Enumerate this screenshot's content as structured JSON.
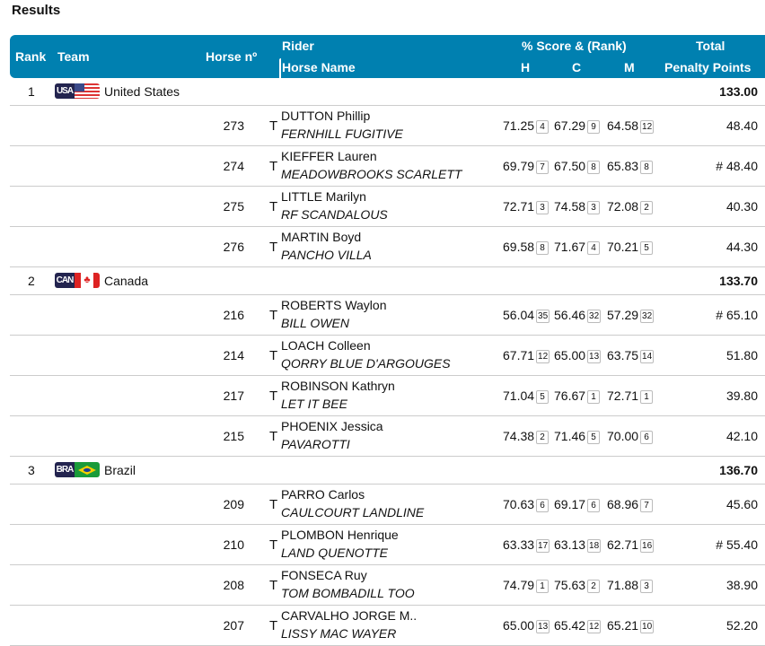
{
  "title": "Results",
  "header": {
    "rank": "Rank",
    "team": "Team",
    "horse_no": "Horse nº",
    "rider": "Rider",
    "horse_name": "Horse Name",
    "score": "% Score & (Rank)",
    "h": "H",
    "c": "C",
    "m": "M",
    "total": "Total",
    "penalty": "Penalty Points"
  },
  "colors": {
    "header_bg": "#0080b0"
  },
  "teams": [
    {
      "rank": "1",
      "code": "USA",
      "name": "United States",
      "total": "133.00",
      "flag": "usa",
      "riders": [
        {
          "no": "273",
          "t": "T",
          "rider": "DUTTON Phillip",
          "horse": "FERNHILL FUGITIVE",
          "h": "71.25",
          "hr": "4",
          "c": "67.29",
          "cr": "9",
          "m": "64.58",
          "mr": "12",
          "pen": "48.40"
        },
        {
          "no": "274",
          "t": "T",
          "rider": "KIEFFER Lauren",
          "horse": "MEADOWBROOKS SCARLETT",
          "h": "69.79",
          "hr": "7",
          "c": "67.50",
          "cr": "8",
          "m": "65.83",
          "mr": "8",
          "pen": "# 48.40"
        },
        {
          "no": "275",
          "t": "T",
          "rider": "LITTLE Marilyn",
          "horse": "RF SCANDALOUS",
          "h": "72.71",
          "hr": "3",
          "c": "74.58",
          "cr": "3",
          "m": "72.08",
          "mr": "2",
          "pen": "40.30"
        },
        {
          "no": "276",
          "t": "T",
          "rider": "MARTIN Boyd",
          "horse": "PANCHO VILLA",
          "h": "69.58",
          "hr": "8",
          "c": "71.67",
          "cr": "4",
          "m": "70.21",
          "mr": "5",
          "pen": "44.30"
        }
      ]
    },
    {
      "rank": "2",
      "code": "CAN",
      "name": "Canada",
      "total": "133.70",
      "flag": "can",
      "riders": [
        {
          "no": "216",
          "t": "T",
          "rider": "ROBERTS Waylon",
          "horse": "BILL OWEN",
          "h": "56.04",
          "hr": "35",
          "c": "56.46",
          "cr": "32",
          "m": "57.29",
          "mr": "32",
          "pen": "# 65.10"
        },
        {
          "no": "214",
          "t": "T",
          "rider": "LOACH Colleen",
          "horse": "QORRY BLUE D'ARGOUGES",
          "h": "67.71",
          "hr": "12",
          "c": "65.00",
          "cr": "13",
          "m": "63.75",
          "mr": "14",
          "pen": "51.80"
        },
        {
          "no": "217",
          "t": "T",
          "rider": "ROBINSON Kathryn",
          "horse": "LET IT BEE",
          "h": "71.04",
          "hr": "5",
          "c": "76.67",
          "cr": "1",
          "m": "72.71",
          "mr": "1",
          "pen": "39.80"
        },
        {
          "no": "215",
          "t": "T",
          "rider": "PHOENIX Jessica",
          "horse": "PAVAROTTI",
          "h": "74.38",
          "hr": "2",
          "c": "71.46",
          "cr": "5",
          "m": "70.00",
          "mr": "6",
          "pen": "42.10"
        }
      ]
    },
    {
      "rank": "3",
      "code": "BRA",
      "name": "Brazil",
      "total": "136.70",
      "flag": "bra",
      "riders": [
        {
          "no": "209",
          "t": "T",
          "rider": "PARRO Carlos",
          "horse": "CAULCOURT LANDLINE",
          "h": "70.63",
          "hr": "6",
          "c": "69.17",
          "cr": "6",
          "m": "68.96",
          "mr": "7",
          "pen": "45.60"
        },
        {
          "no": "210",
          "t": "T",
          "rider": "PLOMBON Henrique",
          "horse": "LAND QUENOTTE",
          "h": "63.33",
          "hr": "17",
          "c": "63.13",
          "cr": "18",
          "m": "62.71",
          "mr": "16",
          "pen": "# 55.40"
        },
        {
          "no": "208",
          "t": "T",
          "rider": "FONSECA Ruy",
          "horse": "TOM BOMBADILL TOO",
          "h": "74.79",
          "hr": "1",
          "c": "75.63",
          "cr": "2",
          "m": "71.88",
          "mr": "3",
          "pen": "38.90"
        },
        {
          "no": "207",
          "t": "T",
          "rider": "CARVALHO JORGE M..",
          "horse": "LISSY MAC WAYER",
          "h": "65.00",
          "hr": "13",
          "c": "65.42",
          "cr": "12",
          "m": "65.21",
          "mr": "10",
          "pen": "52.20"
        }
      ]
    }
  ]
}
